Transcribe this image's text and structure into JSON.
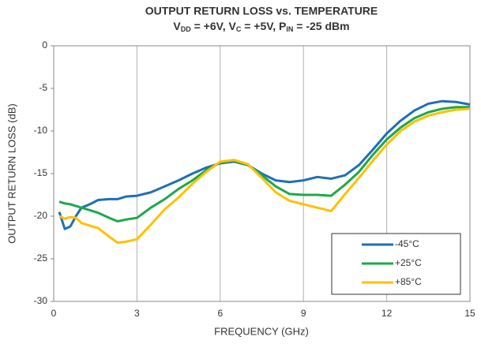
{
  "chart_data": {
    "type": "line",
    "title": "OUTPUT RETURN LOSS vs. TEMPERATURE",
    "subtitle": [
      "V",
      "DD",
      " = +6V, V",
      "C",
      " = +5V, P",
      "IN",
      " = -25 dBm"
    ],
    "x_label": "FREQUENCY (GHz)",
    "y_label": "OUTPUT RETURN LOSS (dB)",
    "x": [
      0.2,
      0.4,
      0.6,
      0.8,
      1.0,
      1.3,
      1.6,
      2.0,
      2.3,
      2.6,
      3.0,
      3.5,
      4,
      4.5,
      5,
      5.5,
      6,
      6.5,
      7,
      7.5,
      8,
      8.5,
      9,
      9.5,
      10,
      10.5,
      11,
      11.5,
      12,
      12.5,
      13,
      13.5,
      14,
      14.5,
      15
    ],
    "series": [
      {
        "name": "-45°C",
        "color": "#1f6fb5",
        "values": [
          -19.5,
          -21.5,
          -21.2,
          -20,
          -19,
          -18.6,
          -18.1,
          -18,
          -18,
          -17.7,
          -17.6,
          -17.2,
          -16.5,
          -15.8,
          -15,
          -14.3,
          -13.8,
          -13.6,
          -14,
          -15,
          -15.8,
          -16,
          -15.8,
          -15.4,
          -15.6,
          -15.2,
          -14,
          -12.2,
          -10.3,
          -8.8,
          -7.6,
          -6.8,
          -6.5,
          -6.6,
          -6.9
        ]
      },
      {
        "name": "+25°C",
        "color": "#1ea84a",
        "values": [
          -18.3,
          -18.5,
          -18.6,
          -18.8,
          -19,
          -19.3,
          -19.6,
          -20.2,
          -20.6,
          -20.4,
          -20.2,
          -19,
          -18,
          -16.8,
          -15.8,
          -14.6,
          -13.7,
          -13.5,
          -14,
          -15.2,
          -16.5,
          -17.4,
          -17.5,
          -17.5,
          -17.6,
          -16.3,
          -14.8,
          -12.8,
          -11,
          -9.6,
          -8.5,
          -7.8,
          -7.4,
          -7.2,
          -7.2
        ]
      },
      {
        "name": "+85°C",
        "color": "#ffc000",
        "values": [
          -20,
          -20.3,
          -20.1,
          -20.2,
          -20.8,
          -21.1,
          -21.4,
          -22.4,
          -23.1,
          -23,
          -22.7,
          -21,
          -19.2,
          -17.8,
          -16.2,
          -14.8,
          -13.6,
          -13.4,
          -13.9,
          -15.5,
          -17.2,
          -18.2,
          -18.6,
          -19,
          -19.4,
          -17.4,
          -15.5,
          -13.5,
          -11.6,
          -10,
          -8.9,
          -8.2,
          -7.8,
          -7.5,
          -7.4
        ]
      }
    ],
    "xlim": [
      0,
      15
    ],
    "xticks": [
      0,
      3,
      6,
      9,
      12,
      15
    ],
    "ylim": [
      -30,
      0
    ],
    "yticks": [
      -30,
      -25,
      -20,
      -15,
      -10,
      -5,
      0
    ],
    "grid": "x",
    "legend": "lower right"
  }
}
